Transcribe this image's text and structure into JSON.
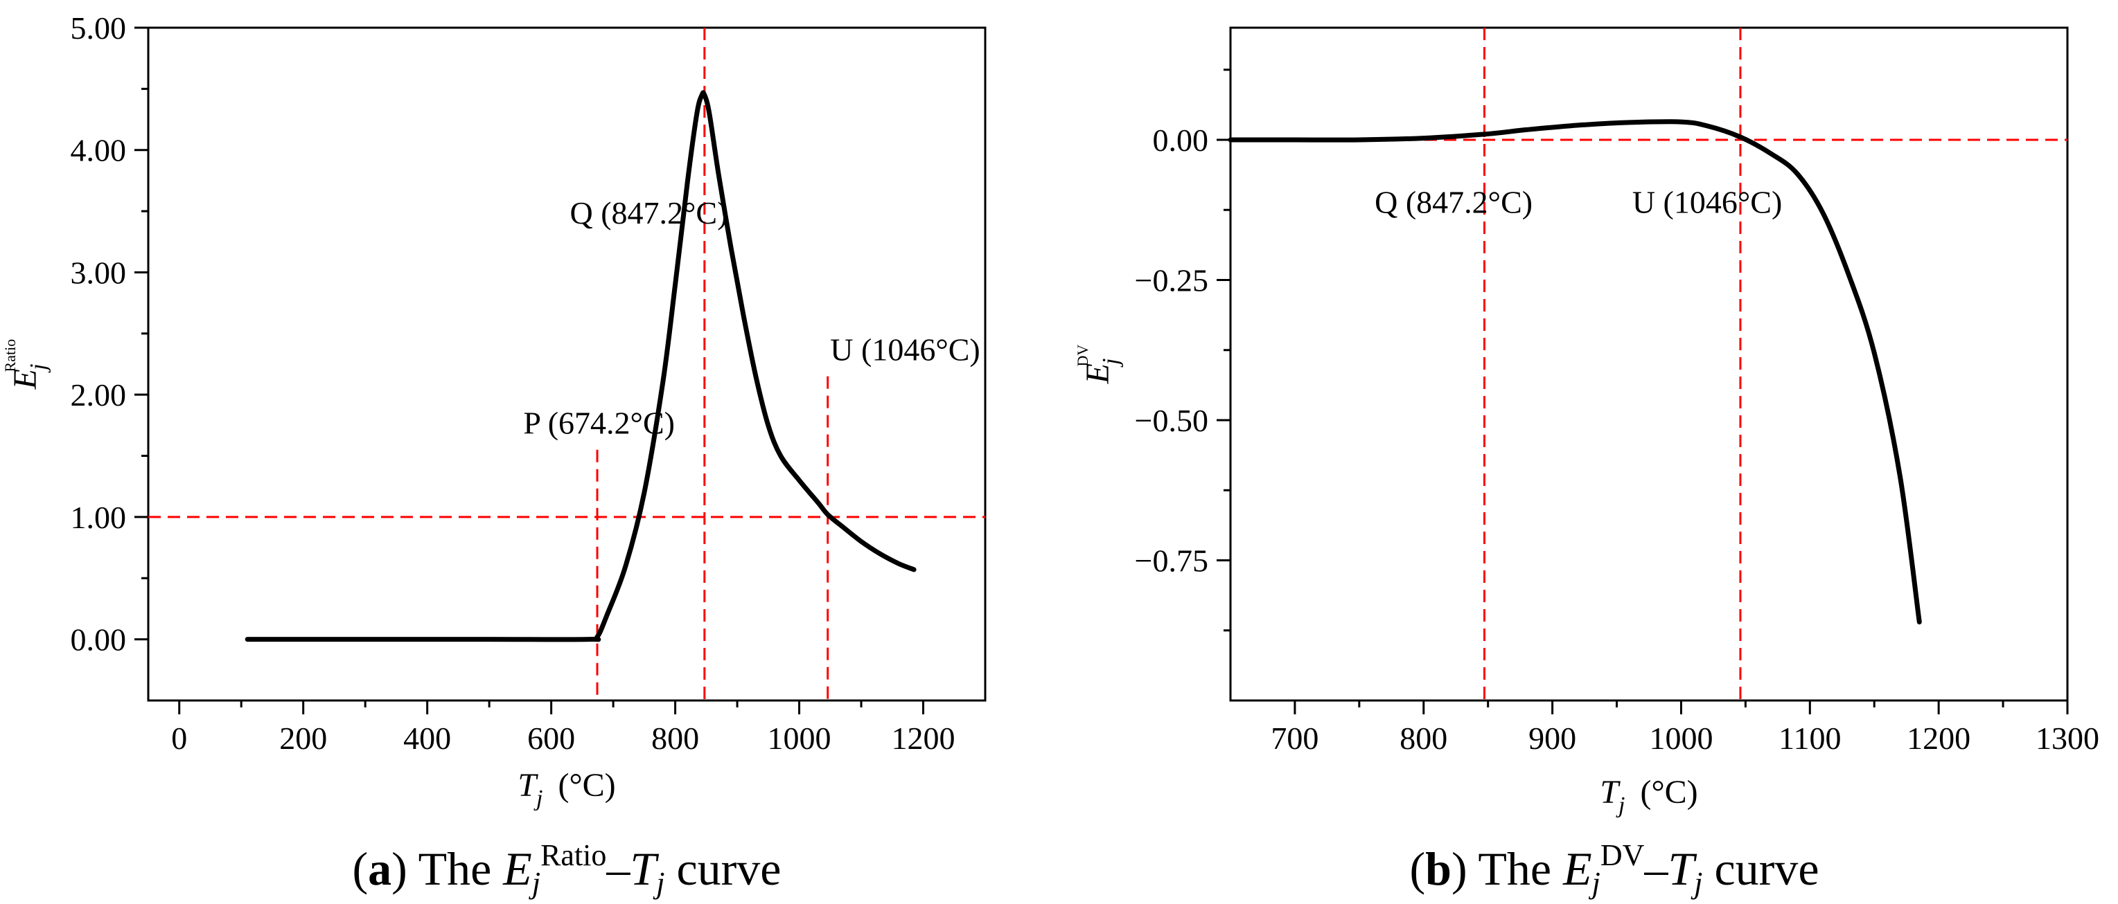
{
  "figure": {
    "panels": [
      {
        "label": "a",
        "caption_prefix": "The",
        "caption_suffix": "curve",
        "caption_quantity": "E",
        "caption_subscript": "j",
        "caption_superscript": "Ratio",
        "caption_variable": "T"
      },
      {
        "label": "b",
        "caption_prefix": "The",
        "caption_suffix": "curve",
        "caption_quantity": "E",
        "caption_subscript": "j",
        "caption_superscript": "DV",
        "caption_variable": "T"
      }
    ]
  },
  "chart_data": [
    {
      "id": "a",
      "type": "line",
      "title": "The Ej Ratio – Tj curve",
      "xlabel": "Tj (°C)",
      "xlabel_symbol": "T",
      "xlabel_sub": "j",
      "xlabel_unit": "(°C)",
      "ylabel": "Ej Ratio",
      "ylabel_symbol": "E",
      "ylabel_sub": "j",
      "ylabel_sup": "Ratio",
      "xlim": [
        -50,
        1300
      ],
      "ylim": [
        -0.5,
        5.0
      ],
      "xticks": [
        0,
        200,
        400,
        600,
        800,
        1000,
        1200
      ],
      "xtick_labels": [
        "0",
        "200",
        "400",
        "600",
        "800",
        "1000",
        "1200"
      ],
      "yticks": [
        0,
        1,
        2,
        3,
        4,
        5
      ],
      "ytick_labels": [
        "0.00",
        "1.00",
        "2.00",
        "3.00",
        "4.00",
        "5.00"
      ],
      "grid": false,
      "series": [
        {
          "name": "Ej Ratio",
          "color": "#000000",
          "x": [
            110,
            300,
            500,
            660,
            674.2,
            690,
            720,
            750,
            780,
            800,
            820,
            835,
            843,
            847.2,
            855,
            870,
            890,
            910,
            930,
            950,
            970,
            1000,
            1030,
            1046,
            1070,
            1100,
            1130,
            1160,
            1185
          ],
          "y": [
            0,
            0,
            0,
            0,
            0.02,
            0.2,
            0.6,
            1.2,
            2.1,
            2.9,
            3.75,
            4.3,
            4.45,
            4.45,
            4.3,
            3.8,
            3.2,
            2.65,
            2.15,
            1.75,
            1.5,
            1.3,
            1.12,
            1.02,
            0.92,
            0.8,
            0.7,
            0.62,
            0.57
          ]
        }
      ],
      "reference_lines": [
        {
          "orientation": "horizontal",
          "value": 1.0,
          "color": "#ff0000",
          "style": "dashed"
        },
        {
          "orientation": "vertical",
          "value": 674.2,
          "color": "#ff0000",
          "style": "dashed",
          "upper": 1.55
        },
        {
          "orientation": "vertical",
          "value": 847.2,
          "color": "#ff0000",
          "style": "dashed"
        },
        {
          "orientation": "vertical",
          "value": 1046,
          "color": "#ff0000",
          "style": "dashed",
          "upper": 2.15
        }
      ],
      "annotations": [
        {
          "text": "P (674.2°C)",
          "x": 555,
          "y": 1.68
        },
        {
          "text": "Q (847.2°C)",
          "x": 630,
          "y": 3.4
        },
        {
          "text": "U (1046°C)",
          "x": 1050,
          "y": 2.28
        }
      ]
    },
    {
      "id": "b",
      "type": "line",
      "title": "The Ej DV – Tj curve",
      "xlabel": "Tj (°C)",
      "xlabel_symbol": "T",
      "xlabel_sub": "j",
      "xlabel_unit": "(°C)",
      "ylabel": "Ej DV",
      "ylabel_symbol": "E",
      "ylabel_sub": "j",
      "ylabel_sup": "DV",
      "xlim": [
        650,
        1300
      ],
      "ylim": [
        -1.0,
        0.2
      ],
      "xticks": [
        700,
        800,
        900,
        1000,
        1100,
        1200,
        1300
      ],
      "xtick_labels": [
        "700",
        "800",
        "900",
        "1000",
        "1100",
        "1200",
        "1300"
      ],
      "yticks": [
        0.0,
        -0.25,
        -0.5,
        -0.75
      ],
      "ytick_labels": [
        "0.00",
        "−0.25",
        "−0.50",
        "−0.75"
      ],
      "grid": false,
      "series": [
        {
          "name": "Ej DV",
          "color": "#000000",
          "x": [
            650,
            700,
            750,
            800,
            847.2,
            880,
            920,
            960,
            1000,
            1020,
            1046,
            1070,
            1090,
            1110,
            1130,
            1150,
            1170,
            1185
          ],
          "y": [
            0,
            0,
            0,
            0.003,
            0.01,
            0.018,
            0.026,
            0.031,
            0.032,
            0.025,
            0.005,
            -0.025,
            -0.06,
            -0.13,
            -0.24,
            -0.38,
            -0.6,
            -0.86
          ]
        }
      ],
      "reference_lines": [
        {
          "orientation": "horizontal",
          "value": 0.0,
          "color": "#ff0000",
          "style": "dashed"
        },
        {
          "orientation": "vertical",
          "value": 847.2,
          "color": "#ff0000",
          "style": "dashed"
        },
        {
          "orientation": "vertical",
          "value": 1046,
          "color": "#ff0000",
          "style": "dashed"
        }
      ],
      "annotations": [
        {
          "text": "Q (847.2°C)",
          "x": 762,
          "y": -0.13
        },
        {
          "text": "U (1046°C)",
          "x": 962,
          "y": -0.13
        }
      ]
    }
  ]
}
